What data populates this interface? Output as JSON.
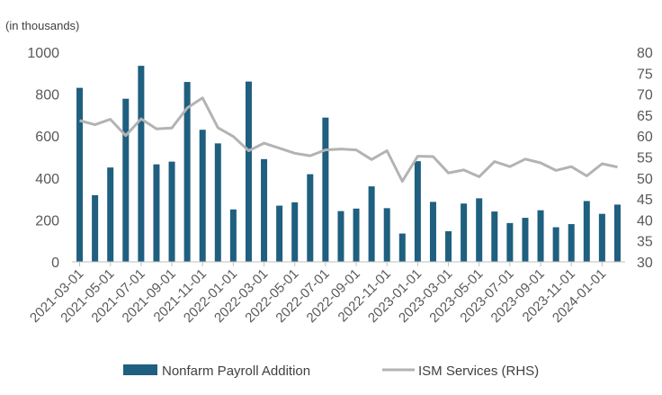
{
  "chart_data": {
    "type": "bar",
    "unit_label": "(in thousands)",
    "categories": [
      "2021-03-01",
      "2021-04-01",
      "2021-05-01",
      "2021-06-01",
      "2021-07-01",
      "2021-08-01",
      "2021-09-01",
      "2021-10-01",
      "2021-11-01",
      "2021-12-01",
      "2022-01-01",
      "2022-02-01",
      "2022-03-01",
      "2022-04-01",
      "2022-05-01",
      "2022-06-01",
      "2022-07-01",
      "2022-08-01",
      "2022-09-01",
      "2022-10-01",
      "2022-11-01",
      "2022-12-01",
      "2023-01-01",
      "2023-02-01",
      "2023-03-01",
      "2023-04-01",
      "2023-05-01",
      "2023-06-01",
      "2023-07-01",
      "2023-08-01",
      "2023-09-01",
      "2023-10-01",
      "2023-11-01",
      "2023-12-01",
      "2024-01-01",
      "2024-02-01"
    ],
    "x_tick_labels": [
      "2021-03-01",
      "2021-05-01",
      "2021-07-01",
      "2021-09-01",
      "2021-11-01",
      "2022-01-01",
      "2022-03-01",
      "2022-05-01",
      "2022-07-01",
      "2022-09-01",
      "2022-11-01",
      "2023-01-01",
      "2023-03-01",
      "2023-05-01",
      "2023-07-01",
      "2023-09-01",
      "2023-11-01",
      "2024-01-01"
    ],
    "series": [
      {
        "name": "Nonfarm Payroll Addition",
        "type": "bar",
        "axis": "left",
        "color": "#1f5f7f",
        "values": [
          830,
          318,
          450,
          778,
          935,
          465,
          478,
          858,
          630,
          565,
          250,
          860,
          490,
          268,
          284,
          418,
          688,
          242,
          254,
          360,
          256,
          135,
          480,
          286,
          146,
          278,
          303,
          240,
          185,
          210,
          246,
          165,
          180,
          290,
          229,
          273
        ]
      },
      {
        "name": "ISM Services (RHS)",
        "type": "line",
        "axis": "right",
        "color": "#b3b3b3",
        "values": [
          63.7,
          62.7,
          64.0,
          60.1,
          64.1,
          61.7,
          61.9,
          66.7,
          69.1,
          62.0,
          59.9,
          56.5,
          58.3,
          57.1,
          55.9,
          55.3,
          56.7,
          56.9,
          56.7,
          54.4,
          56.5,
          49.2,
          55.2,
          55.1,
          51.2,
          51.9,
          50.3,
          53.9,
          52.7,
          54.5,
          53.6,
          51.8,
          52.7,
          50.5,
          53.4,
          52.6
        ]
      }
    ],
    "y_left": {
      "min": 0,
      "max": 1000,
      "ticks": [
        0,
        200,
        400,
        600,
        800,
        1000
      ]
    },
    "y_right": {
      "min": 30,
      "max": 80,
      "ticks": [
        30,
        35,
        40,
        45,
        50,
        55,
        60,
        65,
        70,
        75,
        80
      ]
    },
    "legend_position": "bottom",
    "grid": false
  }
}
